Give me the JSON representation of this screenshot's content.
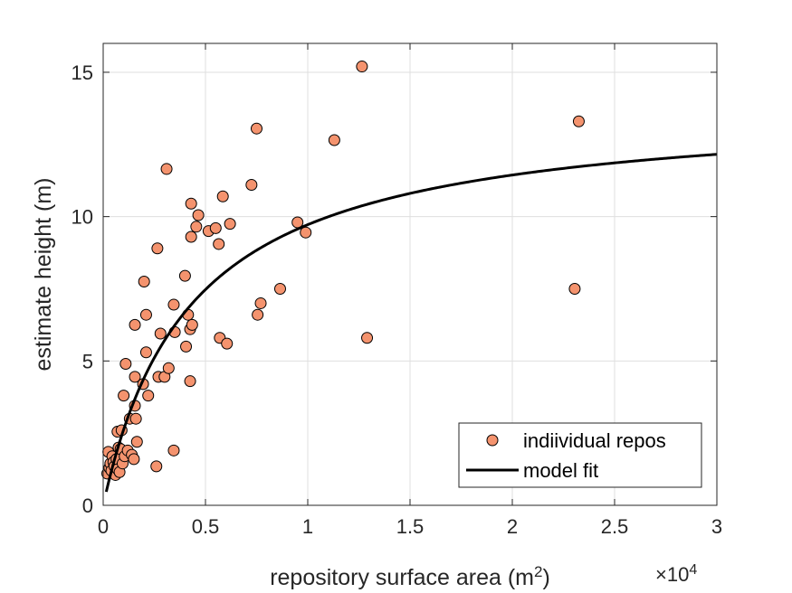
{
  "chart_data": {
    "type": "scatter",
    "xlabel": "repository surface area (m",
    "xlabel_sup": "2",
    "xlabel_close": ")",
    "x_exponent_prefix": "×10",
    "x_exponent": "4",
    "ylabel": "estimate height (m)",
    "xlim": [
      0,
      30000
    ],
    "ylim": [
      0,
      16
    ],
    "x_ticks": [
      0,
      5000,
      10000,
      15000,
      20000,
      25000,
      30000
    ],
    "x_tick_labels": [
      "0",
      "0.5",
      "1",
      "1.5",
      "2",
      "2.5",
      "3"
    ],
    "y_ticks": [
      0,
      5,
      10,
      15
    ],
    "y_tick_labels": [
      "0",
      "5",
      "10",
      "15"
    ],
    "grid": true,
    "legend_position": "bottom-right",
    "colors": {
      "marker_fill": "#F4936E",
      "marker_edge": "#000000",
      "fit_line": "#000000"
    },
    "series": [
      {
        "name": "indiividual repos",
        "kind": "scatter",
        "points": [
          [
            200,
            1.1
          ],
          [
            250,
            1.85
          ],
          [
            300,
            1.3
          ],
          [
            350,
            1.45
          ],
          [
            400,
            1.2
          ],
          [
            450,
            1.7
          ],
          [
            500,
            1.5
          ],
          [
            550,
            1.35
          ],
          [
            600,
            1.05
          ],
          [
            650,
            1.6
          ],
          [
            700,
            1.25
          ],
          [
            700,
            2.55
          ],
          [
            750,
            2.0
          ],
          [
            800,
            1.15
          ],
          [
            850,
            1.95
          ],
          [
            900,
            2.6
          ],
          [
            950,
            1.45
          ],
          [
            1000,
            3.8
          ],
          [
            1050,
            1.7
          ],
          [
            1100,
            4.9
          ],
          [
            1200,
            1.9
          ],
          [
            1300,
            3.0
          ],
          [
            1400,
            1.75
          ],
          [
            1500,
            1.6
          ],
          [
            1550,
            3.45
          ],
          [
            1600,
            3.0
          ],
          [
            1550,
            4.45
          ],
          [
            1550,
            6.25
          ],
          [
            1650,
            2.2
          ],
          [
            1950,
            4.2
          ],
          [
            2000,
            7.75
          ],
          [
            2100,
            5.3
          ],
          [
            2100,
            6.6
          ],
          [
            2200,
            3.8
          ],
          [
            2600,
            1.35
          ],
          [
            2650,
            8.9
          ],
          [
            2700,
            4.45
          ],
          [
            2800,
            5.95
          ],
          [
            3000,
            4.45
          ],
          [
            3100,
            11.65
          ],
          [
            3200,
            4.75
          ],
          [
            3450,
            6.95
          ],
          [
            3450,
            1.9
          ],
          [
            3500,
            6.0
          ],
          [
            4000,
            7.95
          ],
          [
            4050,
            5.5
          ],
          [
            4150,
            6.6
          ],
          [
            4250,
            6.1
          ],
          [
            4250,
            4.3
          ],
          [
            4300,
            9.3
          ],
          [
            4300,
            10.45
          ],
          [
            4350,
            6.25
          ],
          [
            4550,
            9.65
          ],
          [
            4650,
            10.05
          ],
          [
            5150,
            9.5
          ],
          [
            5500,
            9.6
          ],
          [
            5650,
            9.05
          ],
          [
            5700,
            5.8
          ],
          [
            5850,
            10.7
          ],
          [
            6050,
            5.6
          ],
          [
            6200,
            9.75
          ],
          [
            7250,
            11.1
          ],
          [
            7500,
            13.05
          ],
          [
            7550,
            6.6
          ],
          [
            7700,
            7.0
          ],
          [
            8650,
            7.5
          ],
          [
            9500,
            9.8
          ],
          [
            9900,
            9.45
          ],
          [
            11300,
            12.65
          ],
          [
            12650,
            15.2
          ],
          [
            12900,
            5.8
          ],
          [
            23050,
            7.5
          ],
          [
            23250,
            13.3
          ]
        ]
      },
      {
        "name": "model fit",
        "kind": "line",
        "a": 13.9,
        "b": 4300,
        "x_start": 150,
        "x_end": 30000
      }
    ]
  }
}
